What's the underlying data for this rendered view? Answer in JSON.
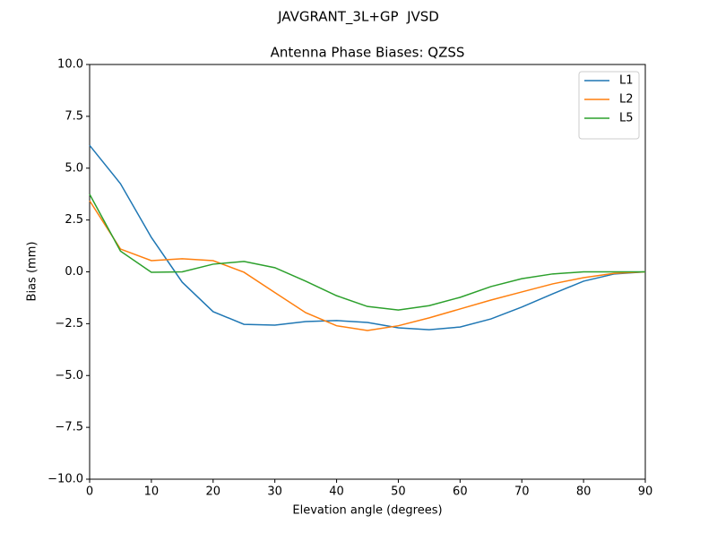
{
  "chart_data": {
    "type": "line",
    "suptitle": "JAVGRANT_3L+GP  JVSD",
    "title": "Antenna Phase Biases: QZSS",
    "x_label": "Elevation angle (degrees)",
    "y_label": "Bias (mm)",
    "x": [
      0,
      5,
      10,
      15,
      20,
      25,
      30,
      35,
      40,
      45,
      50,
      55,
      60,
      65,
      70,
      75,
      80,
      85,
      90
    ],
    "series": [
      {
        "name": "L1",
        "color": "#1f77b4",
        "values": [
          6.1,
          4.25,
          1.66,
          -0.5,
          -1.92,
          -2.53,
          -2.57,
          -2.4,
          -2.35,
          -2.44,
          -2.7,
          -2.79,
          -2.66,
          -2.27,
          -1.7,
          -1.06,
          -0.45,
          -0.1,
          0
        ]
      },
      {
        "name": "L2",
        "color": "#ff7f0e",
        "values": [
          3.43,
          1.1,
          0.54,
          0.63,
          0.54,
          -0.02,
          -1.0,
          -1.97,
          -2.6,
          -2.83,
          -2.6,
          -2.22,
          -1.79,
          -1.36,
          -0.97,
          -0.58,
          -0.28,
          -0.07,
          0
        ]
      },
      {
        "name": "L5",
        "color": "#2ca02c",
        "values": [
          3.74,
          1.0,
          -0.02,
          0.0,
          0.37,
          0.5,
          0.2,
          -0.45,
          -1.15,
          -1.67,
          -1.84,
          -1.63,
          -1.23,
          -0.71,
          -0.33,
          -0.1,
          0,
          0,
          0
        ]
      }
    ],
    "xlim": [
      0,
      90
    ],
    "xticks": [
      0,
      10,
      20,
      30,
      40,
      50,
      60,
      70,
      80,
      90
    ],
    "ylim": [
      -10,
      10
    ],
    "yticks": [
      {
        "value": -10,
        "label": "−10.0"
      },
      {
        "value": -7.5,
        "label": "−7.5"
      },
      {
        "value": -5,
        "label": "−5.0"
      },
      {
        "value": -2.5,
        "label": "−2.5"
      },
      {
        "value": 0,
        "label": "0.0"
      },
      {
        "value": 2.5,
        "label": "2.5"
      },
      {
        "value": 5,
        "label": "5.0"
      },
      {
        "value": 7.5,
        "label": "7.5"
      },
      {
        "value": 10,
        "label": "10.0"
      }
    ],
    "grid": false,
    "legend": "upper right"
  }
}
